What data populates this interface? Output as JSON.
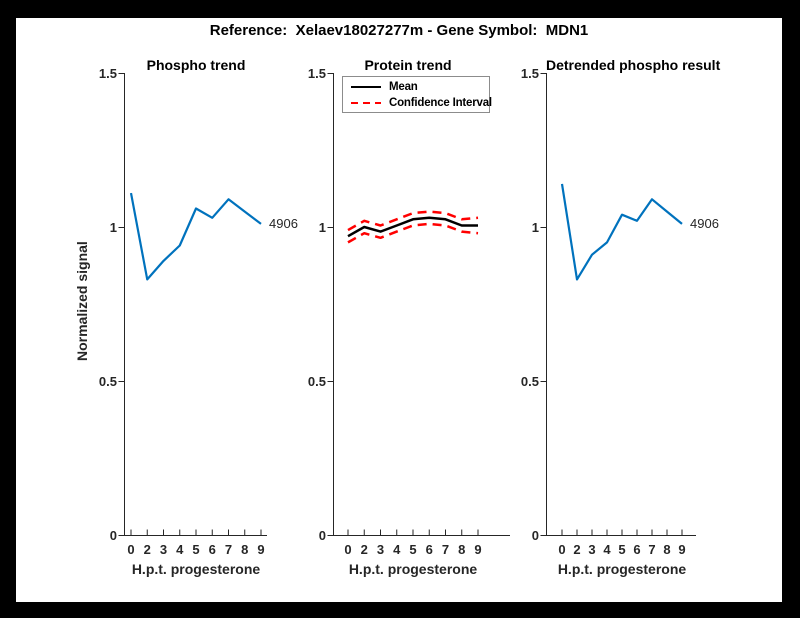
{
  "figure": {
    "title": "Reference:  Xelaev18027277m - Gene Symbol:  MDN1"
  },
  "colors": {
    "line_blue": "#0072BD",
    "ci_red": "#FF0000",
    "mean_black": "#000000",
    "axis_gray": "#262626",
    "frame_black": "#000000",
    "canvas_white": "#FFFFFF",
    "legend_border": "#8C8C8C"
  },
  "axis": {
    "xlabel": "H.p.t. progesterone",
    "ylabel": "Normalized signal",
    "x_tick_labels": [
      "0",
      "2",
      "3",
      "4",
      "5",
      "6",
      "7",
      "8",
      "9"
    ],
    "y_tick_labels": [
      "0",
      "0.5",
      "1",
      "1.5"
    ],
    "ylim": [
      0,
      1.5
    ]
  },
  "chart_data": [
    {
      "type": "line",
      "title": "Phospho trend",
      "xlabel": "H.p.t. progesterone",
      "ylabel": "Normalized signal",
      "categories": [
        "0",
        "2",
        "3",
        "4",
        "5",
        "6",
        "7",
        "8",
        "9"
      ],
      "ylim": [
        0,
        1.5
      ],
      "yticks": [
        0,
        0.5,
        1,
        1.5
      ],
      "grid": false,
      "series": [
        {
          "name": "4906",
          "color": "#0072BD",
          "style": "solid",
          "endpoint_label": "4906",
          "values": [
            1.11,
            0.83,
            0.89,
            0.94,
            1.06,
            1.03,
            1.09,
            1.05,
            1.01
          ]
        }
      ]
    },
    {
      "type": "line",
      "title": "Protein trend",
      "xlabel": "H.p.t. progesterone",
      "ylabel": "",
      "categories": [
        "0",
        "2",
        "3",
        "4",
        "5",
        "6",
        "7",
        "8",
        "9"
      ],
      "ylim": [
        0,
        1.5
      ],
      "yticks": [
        0,
        0.5,
        1,
        1.5
      ],
      "grid": false,
      "legend": {
        "position": "top-left",
        "entries": [
          {
            "label": "Mean",
            "color": "#000000",
            "style": "solid"
          },
          {
            "label": "Confidence Interval",
            "color": "#FF0000",
            "style": "dashed"
          }
        ]
      },
      "series": [
        {
          "name": "Mean",
          "color": "#000000",
          "style": "solid",
          "values": [
            0.97,
            1.0,
            0.985,
            1.005,
            1.025,
            1.03,
            1.025,
            1.005,
            1.005
          ]
        },
        {
          "name": "Confidence Interval upper",
          "color": "#FF0000",
          "style": "dashed",
          "values": [
            0.99,
            1.02,
            1.005,
            1.025,
            1.045,
            1.05,
            1.045,
            1.025,
            1.03
          ]
        },
        {
          "name": "Confidence Interval lower",
          "color": "#FF0000",
          "style": "dashed",
          "values": [
            0.95,
            0.98,
            0.965,
            0.985,
            1.005,
            1.01,
            1.005,
            0.985,
            0.98
          ]
        }
      ]
    },
    {
      "type": "line",
      "title": "Detrended phospho result",
      "xlabel": "H.p.t. progesterone",
      "ylabel": "",
      "categories": [
        "0",
        "2",
        "3",
        "4",
        "5",
        "6",
        "7",
        "8",
        "9"
      ],
      "ylim": [
        0,
        1.5
      ],
      "yticks": [
        0,
        0.5,
        1,
        1.5
      ],
      "grid": false,
      "series": [
        {
          "name": "4906",
          "color": "#0072BD",
          "style": "solid",
          "endpoint_label": "4906",
          "values": [
            1.14,
            0.83,
            0.91,
            0.95,
            1.04,
            1.02,
            1.09,
            1.05,
            1.01
          ]
        }
      ]
    }
  ]
}
